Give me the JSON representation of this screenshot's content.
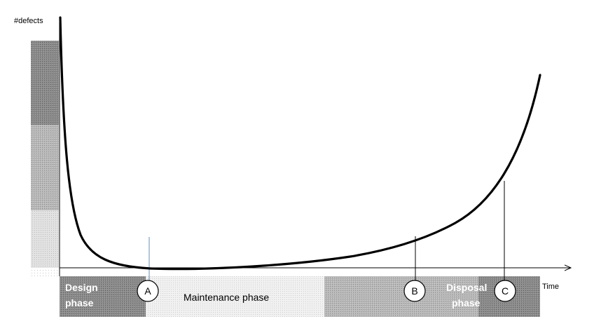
{
  "axes": {
    "y_label": "#defects",
    "x_label": "Time"
  },
  "phases": {
    "design": [
      "Design",
      "phase"
    ],
    "maintenance": "Maintenance phase",
    "disposal": [
      "Disposal",
      "phase"
    ]
  },
  "markers": [
    "A",
    "B",
    "C"
  ],
  "colors": {
    "curve": "#000000",
    "marker_a_line": "#5b8fc7",
    "band_dark": "#8a8a8a",
    "band_mid": "#b5b5b5",
    "band_light": "#dedede",
    "phase_text": "#ffffff"
  }
}
